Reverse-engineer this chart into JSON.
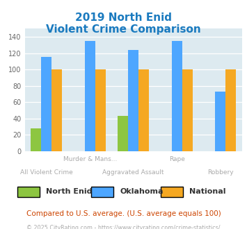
{
  "title_line1": "2019 North Enid",
  "title_line2": "Violent Crime Comparison",
  "categories": [
    "All Violent Crime",
    "Murder & Mans...",
    "Aggravated Assault",
    "Rape",
    "Robbery"
  ],
  "series": {
    "North Enid": [
      28,
      0,
      43,
      0,
      0
    ],
    "Oklahoma": [
      115,
      135,
      124,
      135,
      73
    ],
    "National": [
      100,
      100,
      100,
      100,
      100
    ]
  },
  "colors": {
    "North Enid": "#8dc641",
    "Oklahoma": "#4da6ff",
    "National": "#f5a822"
  },
  "ylim": [
    0,
    150
  ],
  "yticks": [
    0,
    20,
    40,
    60,
    80,
    100,
    120,
    140
  ],
  "plot_bg": "#ddeaf0",
  "title_color": "#1a7abf",
  "subtitle_note": "Compared to U.S. average. (U.S. average equals 100)",
  "footer": "© 2025 CityRating.com - https://www.cityrating.com/crime-statistics/",
  "legend_labels": [
    "North Enid",
    "Oklahoma",
    "National"
  ],
  "x_top_row": [
    null,
    "Murder & Mans...",
    null,
    "Rape",
    null
  ],
  "x_bot_row": [
    "All Violent Crime",
    null,
    "Aggravated Assault",
    null,
    "Robbery"
  ]
}
